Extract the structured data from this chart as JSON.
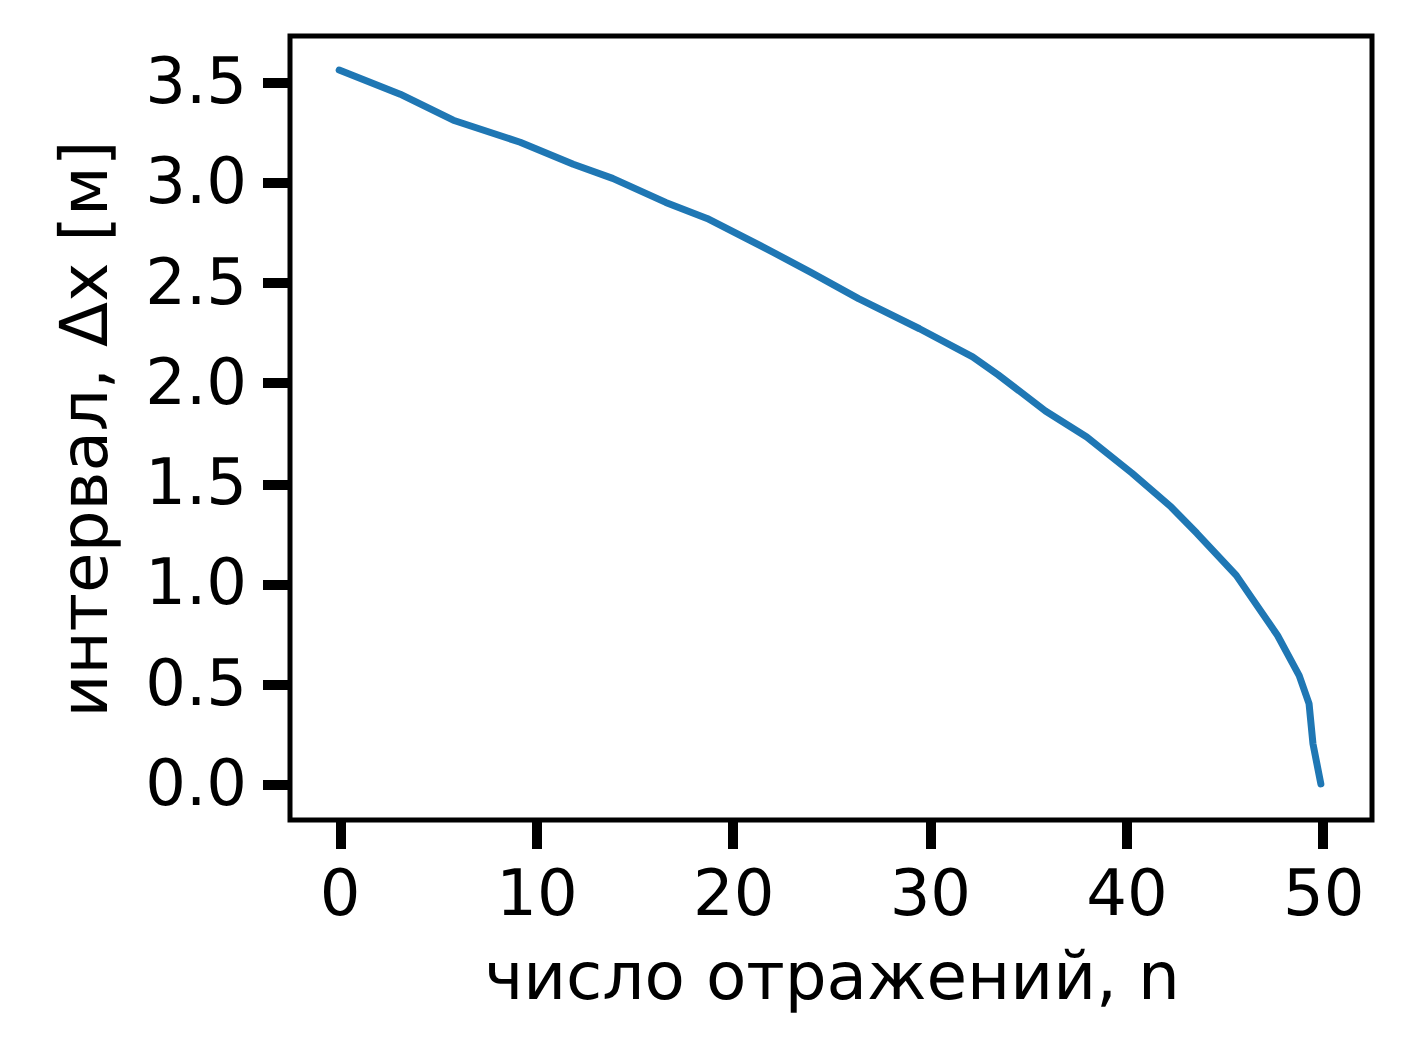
{
  "chart_data": {
    "type": "line",
    "xlabel": "число отражений, n",
    "ylabel": "интервал, Δx [м]",
    "x": [
      0,
      3.1,
      5.8,
      9.2,
      11.9,
      13.9,
      16.6,
      18.7,
      21.7,
      24.0,
      26.4,
      29.5,
      32.2,
      33.5,
      35.9,
      38.0,
      40.3,
      42.3,
      43.6,
      45.6,
      47.7,
      48.8,
      49.3,
      49.5,
      49.9
    ],
    "values": [
      3.56,
      3.44,
      3.31,
      3.2,
      3.09,
      3.02,
      2.9,
      2.82,
      2.67,
      2.55,
      2.42,
      2.27,
      2.13,
      2.04,
      1.86,
      1.73,
      1.55,
      1.38,
      1.25,
      1.04,
      0.74,
      0.54,
      0.4,
      0.2,
      0.0
    ],
    "color": "#1f77b4",
    "xlim": [
      -2.5,
      52.5
    ],
    "ylim": [
      -0.18,
      3.73
    ],
    "xticks": [
      0,
      10,
      20,
      30,
      40,
      50
    ],
    "yticks": [
      {
        "value": 0,
        "label": "0.0"
      },
      0.5,
      {
        "value": 1,
        "label": "1.0"
      },
      1.5,
      {
        "value": 2,
        "label": "2.0"
      },
      2.5,
      {
        "value": 3,
        "label": "3.0"
      },
      3.5
    ]
  }
}
